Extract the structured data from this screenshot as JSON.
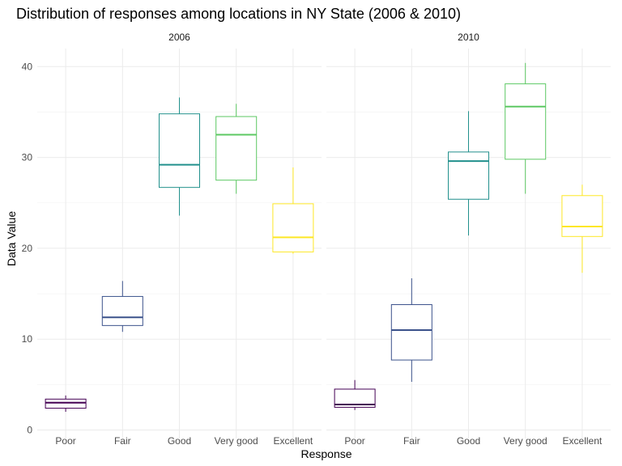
{
  "chart_data": {
    "type": "boxplot",
    "title": "Distribution of responses among locations in NY State (2006 & 2010)",
    "xlabel": "Response",
    "ylabel": "Data Value",
    "categories": [
      "Poor",
      "Fair",
      "Good",
      "Very good",
      "Excellent"
    ],
    "colors": {
      "Poor": "#440154",
      "Fair": "#3b528b",
      "Good": "#21908c",
      "Very good": "#5dc863",
      "Excellent": "#fde725"
    },
    "ylim": [
      0,
      42
    ],
    "yticks": [
      0,
      10,
      20,
      30,
      40
    ],
    "grid": true,
    "legend": "none",
    "panels": [
      {
        "label": "2006",
        "boxes": [
          {
            "category": "Poor",
            "min": 2.0,
            "q1": 2.4,
            "median": 3.0,
            "q3": 3.4,
            "max": 3.8
          },
          {
            "category": "Fair",
            "min": 10.8,
            "q1": 11.5,
            "median": 12.4,
            "q3": 14.7,
            "max": 16.4
          },
          {
            "category": "Good",
            "min": 23.6,
            "q1": 26.7,
            "median": 29.2,
            "q3": 34.8,
            "max": 36.6
          },
          {
            "category": "Very good",
            "min": 26.0,
            "q1": 27.5,
            "median": 32.5,
            "q3": 34.5,
            "max": 35.9
          },
          {
            "category": "Excellent",
            "min": 19.4,
            "q1": 19.6,
            "median": 21.2,
            "q3": 24.9,
            "max": 28.9
          }
        ]
      },
      {
        "label": "2010",
        "boxes": [
          {
            "category": "Poor",
            "min": 2.2,
            "q1": 2.5,
            "median": 2.8,
            "q3": 4.5,
            "max": 5.5
          },
          {
            "category": "Fair",
            "min": 5.3,
            "q1": 7.7,
            "median": 11.0,
            "q3": 13.8,
            "max": 16.7
          },
          {
            "category": "Good",
            "min": 21.4,
            "q1": 25.4,
            "median": 29.6,
            "q3": 30.6,
            "max": 35.1
          },
          {
            "category": "Very good",
            "min": 26.0,
            "q1": 29.8,
            "median": 35.6,
            "q3": 38.1,
            "max": 40.4
          },
          {
            "category": "Excellent",
            "min": 17.3,
            "q1": 21.3,
            "median": 22.4,
            "q3": 25.8,
            "max": 27.0
          }
        ]
      }
    ]
  }
}
